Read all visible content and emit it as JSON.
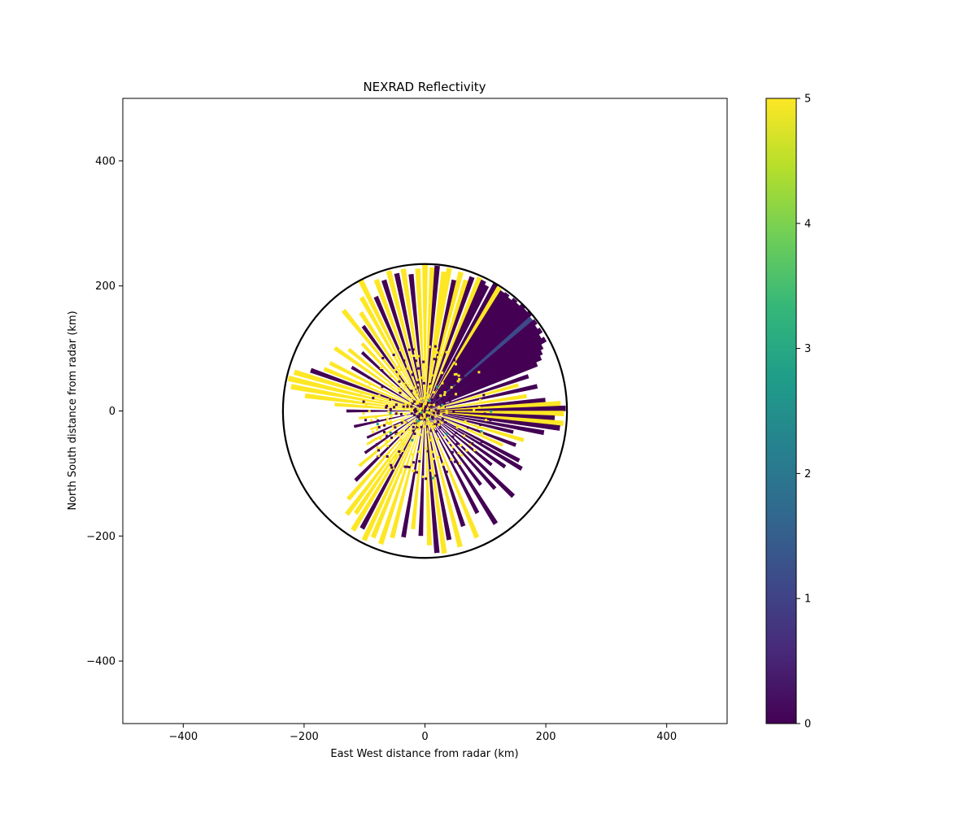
{
  "chart_data": {
    "type": "heatmap",
    "title": "NEXRAD Reflectivity",
    "xlabel": "East West distance from radar (km)",
    "ylabel": "North South distance from radar (km)",
    "xlim": [
      -500,
      500
    ],
    "ylim": [
      -500,
      500
    ],
    "xticks": [
      -400,
      -200,
      0,
      200,
      400
    ],
    "yticks": [
      -400,
      -200,
      0,
      200,
      400
    ],
    "xtick_labels": [
      "−400",
      "−200",
      "0",
      "200",
      "400"
    ],
    "ytick_labels": [
      "−400",
      "−200",
      "0",
      "200",
      "400"
    ],
    "range_ring_km": 235,
    "grid": false,
    "colormap": "viridis",
    "colorbar": {
      "range": [
        0,
        5
      ],
      "ticks": [
        0,
        1,
        2,
        3,
        4,
        5
      ],
      "tick_labels": [
        "0",
        "1",
        "2",
        "3",
        "4",
        "5"
      ],
      "placement": "right"
    },
    "colors": {
      "viridis": [
        "#440154",
        "#482878",
        "#3e4989",
        "#31688e",
        "#26828e",
        "#1f9e89",
        "#35b779",
        "#6ece58",
        "#b5de2b",
        "#fde725"
      ],
      "ring": "#000000"
    },
    "rays": [
      {
        "az": 0,
        "len": 235,
        "v": 5
      },
      {
        "az": 3,
        "len": 230,
        "v": 5
      },
      {
        "az": 5,
        "len": 233,
        "v": 0
      },
      {
        "az": 8,
        "len": 225,
        "v": 5
      },
      {
        "az": 10,
        "len": 232,
        "v": 5
      },
      {
        "az": 13,
        "len": 215,
        "v": 0
      },
      {
        "az": 15,
        "len": 230,
        "v": 5
      },
      {
        "az": 18,
        "len": 220,
        "v": 5
      },
      {
        "az": 20,
        "len": 228,
        "v": 0
      },
      {
        "az": 23,
        "len": 232,
        "v": 5
      },
      {
        "az": 25,
        "len": 230,
        "v": 0
      },
      {
        "az": 27,
        "len": 225,
        "v": 0
      },
      {
        "az": 30,
        "len": 235,
        "v": 0
      },
      {
        "az": 32,
        "len": 233,
        "v": 5
      },
      {
        "az": 34,
        "len": 230,
        "v": 0
      },
      {
        "az": 36,
        "len": 232,
        "v": 0
      },
      {
        "az": 38,
        "len": 228,
        "v": 0
      },
      {
        "az": 40,
        "len": 233,
        "v": 0
      },
      {
        "az": 42,
        "len": 230,
        "v": 0
      },
      {
        "az": 44,
        "len": 235,
        "v": 0
      },
      {
        "az": 46,
        "len": 232,
        "v": 0
      },
      {
        "az": 48,
        "len": 234,
        "v": 0
      },
      {
        "az": 50,
        "len": 230,
        "v": 1
      },
      {
        "az": 52,
        "len": 233,
        "v": 0
      },
      {
        "az": 54,
        "len": 228,
        "v": 0
      },
      {
        "az": 56,
        "len": 232,
        "v": 0
      },
      {
        "az": 58,
        "len": 225,
        "v": 0
      },
      {
        "az": 60,
        "len": 230,
        "v": 0
      },
      {
        "az": 62,
        "len": 220,
        "v": 0
      },
      {
        "az": 64,
        "len": 215,
        "v": 0
      },
      {
        "az": 66,
        "len": 210,
        "v": 0
      },
      {
        "az": 68,
        "len": 200,
        "v": 0
      },
      {
        "az": 72,
        "len": 180,
        "v": 0
      },
      {
        "az": 75,
        "len": 160,
        "v": 5
      },
      {
        "az": 78,
        "len": 190,
        "v": 0
      },
      {
        "az": 82,
        "len": 170,
        "v": 5
      },
      {
        "az": 85,
        "len": 200,
        "v": 0
      },
      {
        "az": 87,
        "len": 225,
        "v": 5
      },
      {
        "az": 89,
        "len": 233,
        "v": 0
      },
      {
        "az": 91,
        "len": 230,
        "v": 5
      },
      {
        "az": 93,
        "len": 215,
        "v": 0
      },
      {
        "az": 95,
        "len": 230,
        "v": 5
      },
      {
        "az": 97,
        "len": 225,
        "v": 0
      },
      {
        "az": 100,
        "len": 200,
        "v": 0
      },
      {
        "az": 103,
        "len": 150,
        "v": 0
      },
      {
        "az": 106,
        "len": 170,
        "v": 5
      },
      {
        "az": 110,
        "len": 160,
        "v": 0
      },
      {
        "az": 113,
        "len": 140,
        "v": 5
      },
      {
        "az": 117,
        "len": 175,
        "v": 0
      },
      {
        "az": 120,
        "len": 185,
        "v": 0
      },
      {
        "az": 124,
        "len": 160,
        "v": 0
      },
      {
        "az": 128,
        "len": 140,
        "v": 0
      },
      {
        "az": 133,
        "len": 200,
        "v": 0
      },
      {
        "az": 137,
        "len": 170,
        "v": 0
      },
      {
        "az": 142,
        "len": 150,
        "v": 0
      },
      {
        "az": 147,
        "len": 215,
        "v": 0
      },
      {
        "az": 152,
        "len": 185,
        "v": 0
      },
      {
        "az": 157,
        "len": 220,
        "v": 5
      },
      {
        "az": 161,
        "len": 195,
        "v": 0
      },
      {
        "az": 165,
        "len": 225,
        "v": 5
      },
      {
        "az": 169,
        "len": 210,
        "v": 0
      },
      {
        "az": 172,
        "len": 230,
        "v": 5
      },
      {
        "az": 175,
        "len": 228,
        "v": 0
      },
      {
        "az": 178,
        "len": 215,
        "v": 5
      },
      {
        "az": 182,
        "len": 200,
        "v": 0
      },
      {
        "az": 186,
        "len": 190,
        "v": 5
      },
      {
        "az": 190,
        "len": 205,
        "v": 0
      },
      {
        "az": 195,
        "len": 210,
        "v": 5
      },
      {
        "az": 199,
        "len": 225,
        "v": 5
      },
      {
        "az": 203,
        "len": 220,
        "v": 5
      },
      {
        "az": 206,
        "len": 230,
        "v": 5
      },
      {
        "az": 209,
        "len": 215,
        "v": 0
      },
      {
        "az": 212,
        "len": 225,
        "v": 5
      },
      {
        "az": 215,
        "len": 200,
        "v": 5
      },
      {
        "az": 218,
        "len": 210,
        "v": 5
      },
      {
        "az": 222,
        "len": 190,
        "v": 5
      },
      {
        "az": 226,
        "len": 160,
        "v": 0
      },
      {
        "az": 231,
        "len": 140,
        "v": 5
      },
      {
        "az": 236,
        "len": 120,
        "v": 0
      },
      {
        "az": 241,
        "len": 110,
        "v": 5
      },
      {
        "az": 246,
        "len": 105,
        "v": 0
      },
      {
        "az": 252,
        "len": 95,
        "v": 5
      },
      {
        "az": 258,
        "len": 120,
        "v": 0
      },
      {
        "az": 264,
        "len": 110,
        "v": 5
      },
      {
        "az": 270,
        "len": 130,
        "v": 0
      },
      {
        "az": 274,
        "len": 150,
        "v": 5
      },
      {
        "az": 277,
        "len": 200,
        "v": 5
      },
      {
        "az": 280,
        "len": 225,
        "v": 5
      },
      {
        "az": 283,
        "len": 232,
        "v": 5
      },
      {
        "az": 286,
        "len": 225,
        "v": 5
      },
      {
        "az": 289,
        "len": 200,
        "v": 0
      },
      {
        "az": 292,
        "len": 180,
        "v": 5
      },
      {
        "az": 296,
        "len": 175,
        "v": 5
      },
      {
        "az": 300,
        "len": 140,
        "v": 0
      },
      {
        "az": 304,
        "len": 180,
        "v": 5
      },
      {
        "az": 308,
        "len": 160,
        "v": 5
      },
      {
        "az": 312,
        "len": 140,
        "v": 0
      },
      {
        "az": 316,
        "len": 150,
        "v": 5
      },
      {
        "az": 320,
        "len": 210,
        "v": 5
      },
      {
        "az": 323,
        "len": 170,
        "v": 0
      },
      {
        "az": 326,
        "len": 190,
        "v": 5
      },
      {
        "az": 330,
        "len": 210,
        "v": 5
      },
      {
        "az": 333,
        "len": 235,
        "v": 5
      },
      {
        "az": 336,
        "len": 200,
        "v": 0
      },
      {
        "az": 339,
        "len": 225,
        "v": 5
      },
      {
        "az": 342,
        "len": 220,
        "v": 0
      },
      {
        "az": 345,
        "len": 232,
        "v": 5
      },
      {
        "az": 348,
        "len": 225,
        "v": 0
      },
      {
        "az": 351,
        "len": 230,
        "v": 5
      },
      {
        "az": 354,
        "len": 220,
        "v": 0
      },
      {
        "az": 357,
        "len": 228,
        "v": 5
      }
    ]
  }
}
